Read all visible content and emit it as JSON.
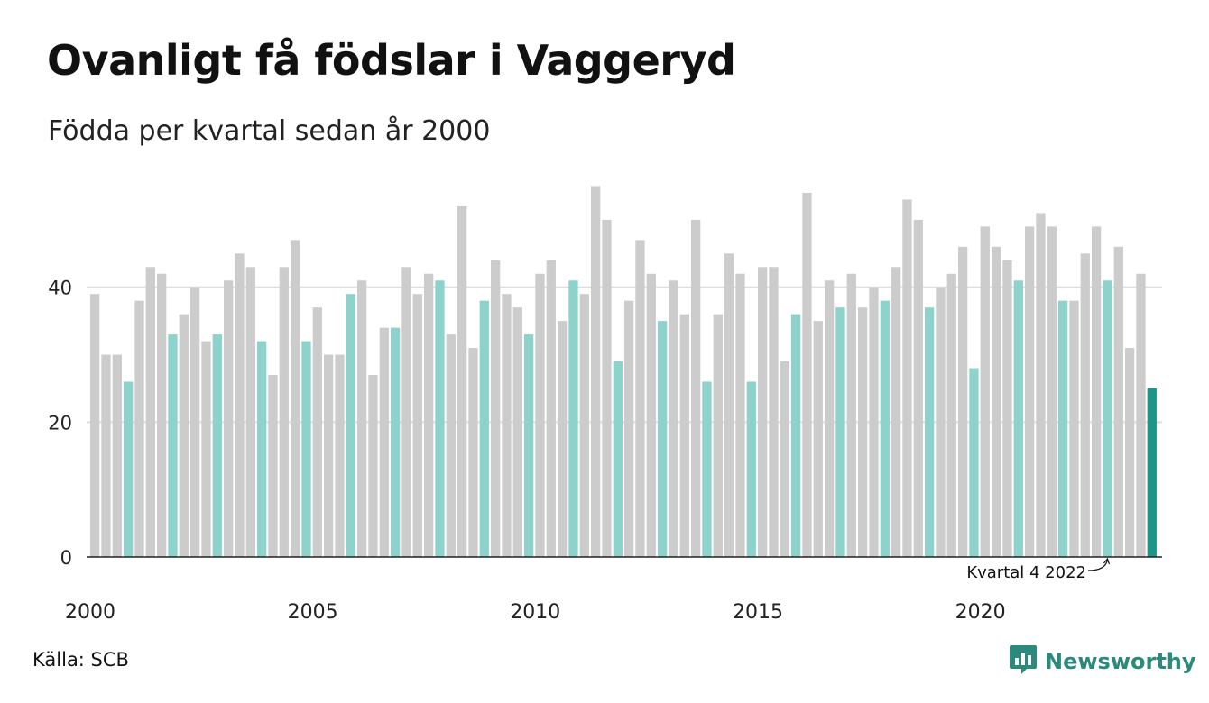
{
  "header": {
    "title": "Ovanligt få födslar i Vaggeryd",
    "subtitle": "Födda per kvartal sedan år 2000"
  },
  "footer": {
    "source": "Källa: SCB",
    "brand": "Newsworthy"
  },
  "colors": {
    "default_bar": "#cccccc",
    "q4_bar": "#8dd3cb",
    "highlight_bar": "#1f9488",
    "grid": "#dddddd",
    "brand": "#2b8a7b"
  },
  "chart_data": {
    "type": "bar",
    "title": "Ovanligt få födslar i Vaggeryd",
    "subtitle": "Födda per kvartal sedan år 2000",
    "unit": "quarter",
    "start_year": 2000,
    "highlight_quarter": 4,
    "ylim": [
      0,
      56
    ],
    "y_ticks": [
      0,
      20,
      40
    ],
    "x_ticks": [
      "2000",
      "2005",
      "2010",
      "2015",
      "2020"
    ],
    "grid": true,
    "annotation": {
      "text": "Kvartal 4 2022",
      "year": 2022,
      "quarter": 4
    },
    "series": [
      {
        "values": [
          39,
          30,
          30,
          26,
          38,
          43,
          42,
          33,
          36,
          40,
          32,
          33,
          41,
          45,
          43,
          32,
          27,
          43,
          47,
          32,
          37,
          30,
          30,
          39,
          41,
          27,
          34,
          34,
          43,
          39,
          42,
          41,
          33,
          52,
          31,
          38,
          44,
          39,
          37,
          33,
          42,
          44,
          35,
          41,
          39,
          55,
          50,
          29,
          38,
          47,
          42,
          35,
          41,
          36,
          50,
          26,
          36,
          45,
          42,
          26,
          43,
          43,
          29,
          36,
          54,
          35,
          41,
          37,
          42,
          37,
          40,
          38,
          43,
          53,
          50,
          37,
          40,
          42,
          46,
          28,
          49,
          46,
          44,
          41,
          49,
          51,
          49,
          38,
          38,
          45,
          49,
          41,
          46,
          31,
          42,
          25
        ]
      }
    ]
  }
}
